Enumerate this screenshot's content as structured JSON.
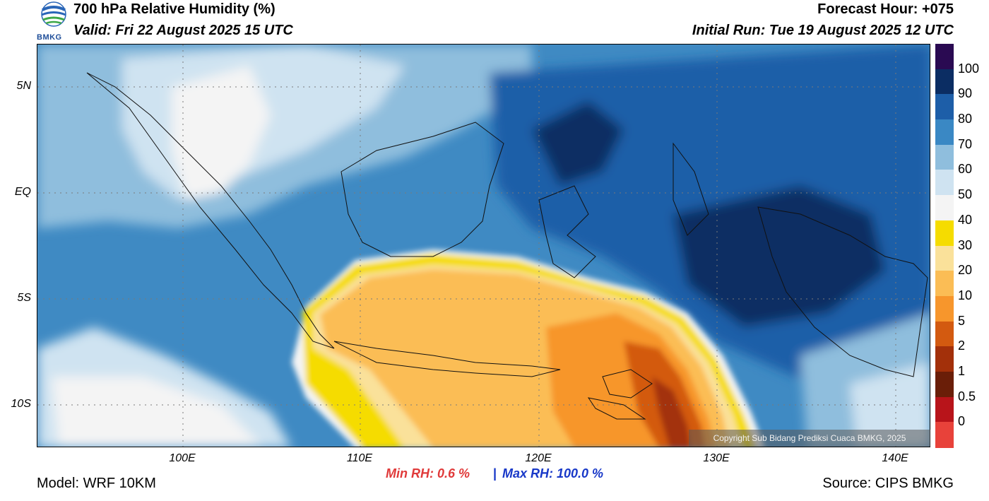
{
  "header": {
    "title": "700 hPa Relative Humidity (%)",
    "valid": "Valid: Fri 22 August 2025 15 UTC",
    "forecast_hour": "Forecast Hour: +075",
    "initial_run": "Initial Run: Tue 19 August 2025 12 UTC",
    "logo_text": "BMKG"
  },
  "map": {
    "lat_labels": [
      "5N",
      "EQ",
      "5S",
      "10S"
    ],
    "lon_labels": [
      "100E",
      "110E",
      "120E",
      "130E",
      "140E"
    ],
    "grid_style": "dotted",
    "copyright": "Copyright Sub Bidang Prediksi Cuaca BMKG, 2025"
  },
  "colorbar": {
    "labels": [
      "100",
      "90",
      "80",
      "70",
      "60",
      "50",
      "40",
      "30",
      "20",
      "10",
      "5",
      "2",
      "1",
      "0.5",
      "0"
    ],
    "colors": [
      "#2a0a52",
      "#0b2d63",
      "#1d5ea8",
      "#3a88c4",
      "#8fbedd",
      "#cfe3f1",
      "#f4f4f4",
      "#f5dc00",
      "#fae19a",
      "#fbbd55",
      "#f7962c",
      "#d35a10",
      "#a3300a",
      "#6a1e08",
      "#b8141a",
      "#e8423a"
    ]
  },
  "stats": {
    "min_rh": "Min RH:   0.6 %",
    "separator": "|",
    "max_rh": "Max RH: 100.0 %"
  },
  "footer": {
    "model": "Model: WRF 10KM",
    "source": "Source: CIPS BMKG"
  }
}
